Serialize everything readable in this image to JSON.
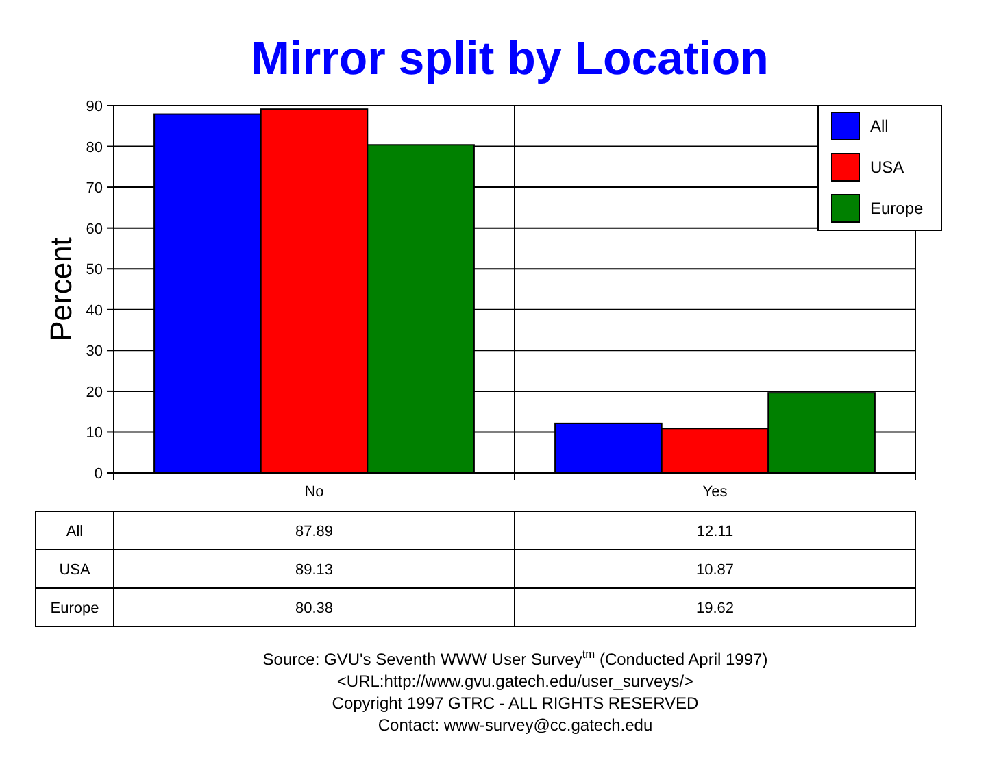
{
  "chart_data": {
    "type": "bar",
    "title": "Mirror split by Location",
    "ylabel": "Percent",
    "categories": [
      "No",
      "Yes"
    ],
    "series": [
      {
        "name": "All",
        "color": "#0000ff",
        "values": [
          87.89,
          12.11
        ]
      },
      {
        "name": "USA",
        "color": "#ff0000",
        "values": [
          89.13,
          10.87
        ]
      },
      {
        "name": "Europe",
        "color": "#008000",
        "values": [
          80.38,
          19.62
        ]
      }
    ],
    "ylim": [
      0,
      90
    ],
    "yticks": [
      0,
      10,
      20,
      30,
      40,
      50,
      60,
      70,
      80,
      90
    ],
    "grid": "y",
    "legend": "top right",
    "data_labels": true,
    "annotations": [
      "Source: GVU's Seventh WWW User Survey$^{tm}$ (Conducted April 1997)",
      "<URL:http://www.gvu.gatech.edu/user_surveys/>",
      "Copyright 1997 GTRC - ALL RIGHTS RESERVED",
      "Contact: www-survey@cc.gatech.edu"
    ]
  }
}
